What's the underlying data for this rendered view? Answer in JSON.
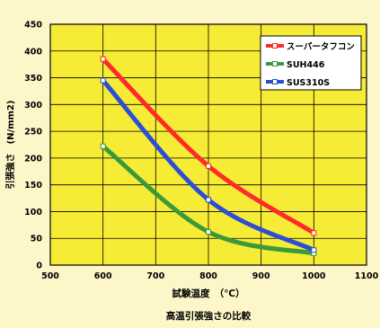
{
  "chart_data": {
    "type": "line",
    "title": "",
    "caption": "高温引張強さの比較",
    "xlabel": "試験温度　（℃）",
    "ylabel": "引張強さ　(N/mm2)",
    "xlim": [
      500,
      1100
    ],
    "ylim": [
      0,
      450
    ],
    "x_ticks": [
      500,
      600,
      700,
      800,
      900,
      1000,
      1100
    ],
    "y_ticks": [
      0,
      50,
      100,
      150,
      200,
      250,
      300,
      350,
      400,
      450
    ],
    "grid": true,
    "legend_position": "top-right",
    "x": [
      600,
      800,
      1000
    ],
    "series": [
      {
        "name": "スーパータフコン",
        "color": "#ff2a2a",
        "values": [
          385,
          185,
          60
        ]
      },
      {
        "name": "SUH446",
        "color": "#3a9a3a",
        "values": [
          222,
          62,
          22
        ]
      },
      {
        "name": "SUS310S",
        "color": "#2a4fd6",
        "values": [
          345,
          122,
          28
        ]
      }
    ]
  }
}
